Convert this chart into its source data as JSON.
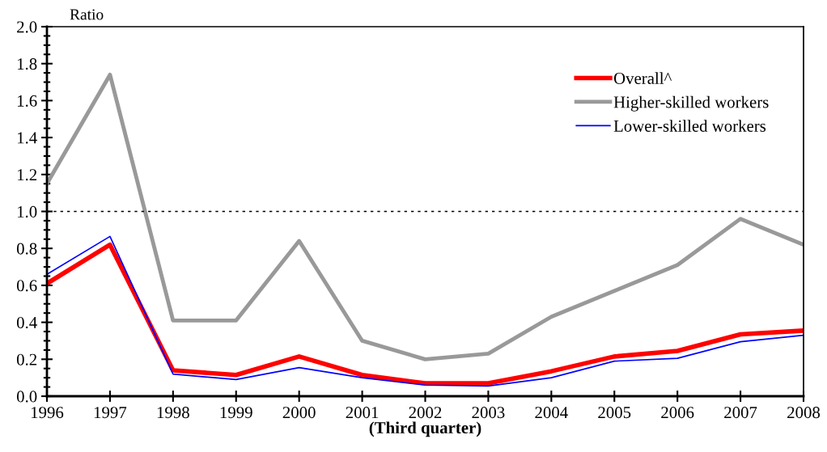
{
  "chart_data": {
    "type": "line",
    "ylabel": "Ratio",
    "xlabel": "(Third quarter)",
    "x": [
      1996,
      1997,
      1998,
      1999,
      2000,
      2001,
      2002,
      2003,
      2004,
      2005,
      2006,
      2007,
      2008
    ],
    "series": [
      {
        "name": "Overall^",
        "color": "#ff0000",
        "values": [
          0.61,
          0.82,
          0.14,
          0.115,
          0.215,
          0.115,
          0.07,
          0.07,
          0.135,
          0.215,
          0.245,
          0.335,
          0.355
        ]
      },
      {
        "name": "Higher-skilled workers",
        "color": "#999999",
        "values": [
          1.15,
          1.74,
          0.41,
          0.41,
          0.84,
          0.3,
          0.2,
          0.23,
          0.43,
          0.57,
          0.71,
          0.96,
          0.82
        ]
      },
      {
        "name": "Lower-skilled workers",
        "color": "#0000ff",
        "values": [
          0.66,
          0.865,
          0.12,
          0.09,
          0.155,
          0.1,
          0.06,
          0.055,
          0.1,
          0.19,
          0.205,
          0.295,
          0.33
        ]
      }
    ],
    "xlim": [
      1996,
      2008
    ],
    "xticks": [
      1996,
      1997,
      1998,
      1999,
      2000,
      2001,
      2002,
      2003,
      2004,
      2005,
      2006,
      2007,
      2008
    ],
    "ylim": [
      0,
      2
    ],
    "yticks": [
      {
        "value": 0,
        "label": "0.0"
      },
      {
        "value": 0.2,
        "label": "0.2"
      },
      {
        "value": 0.4,
        "label": "0.4"
      },
      {
        "value": 0.6,
        "label": "0.6"
      },
      {
        "value": 0.8,
        "label": "0.8"
      },
      {
        "value": 1.0,
        "label": "1.0"
      },
      {
        "value": 1.2,
        "label": "1.2"
      },
      {
        "value": 1.4,
        "label": "1.4"
      },
      {
        "value": 1.6,
        "label": "1.6"
      },
      {
        "value": 1.8,
        "label": "1.8"
      },
      {
        "value": 2.0,
        "label": "2.0"
      }
    ],
    "ref_lines": [
      {
        "axis": "y",
        "value": 1.0,
        "color": "#000000",
        "line_style": "dotted"
      }
    ],
    "grid": false,
    "legend": "top right",
    "marker": "none",
    "line_style": "solid"
  }
}
